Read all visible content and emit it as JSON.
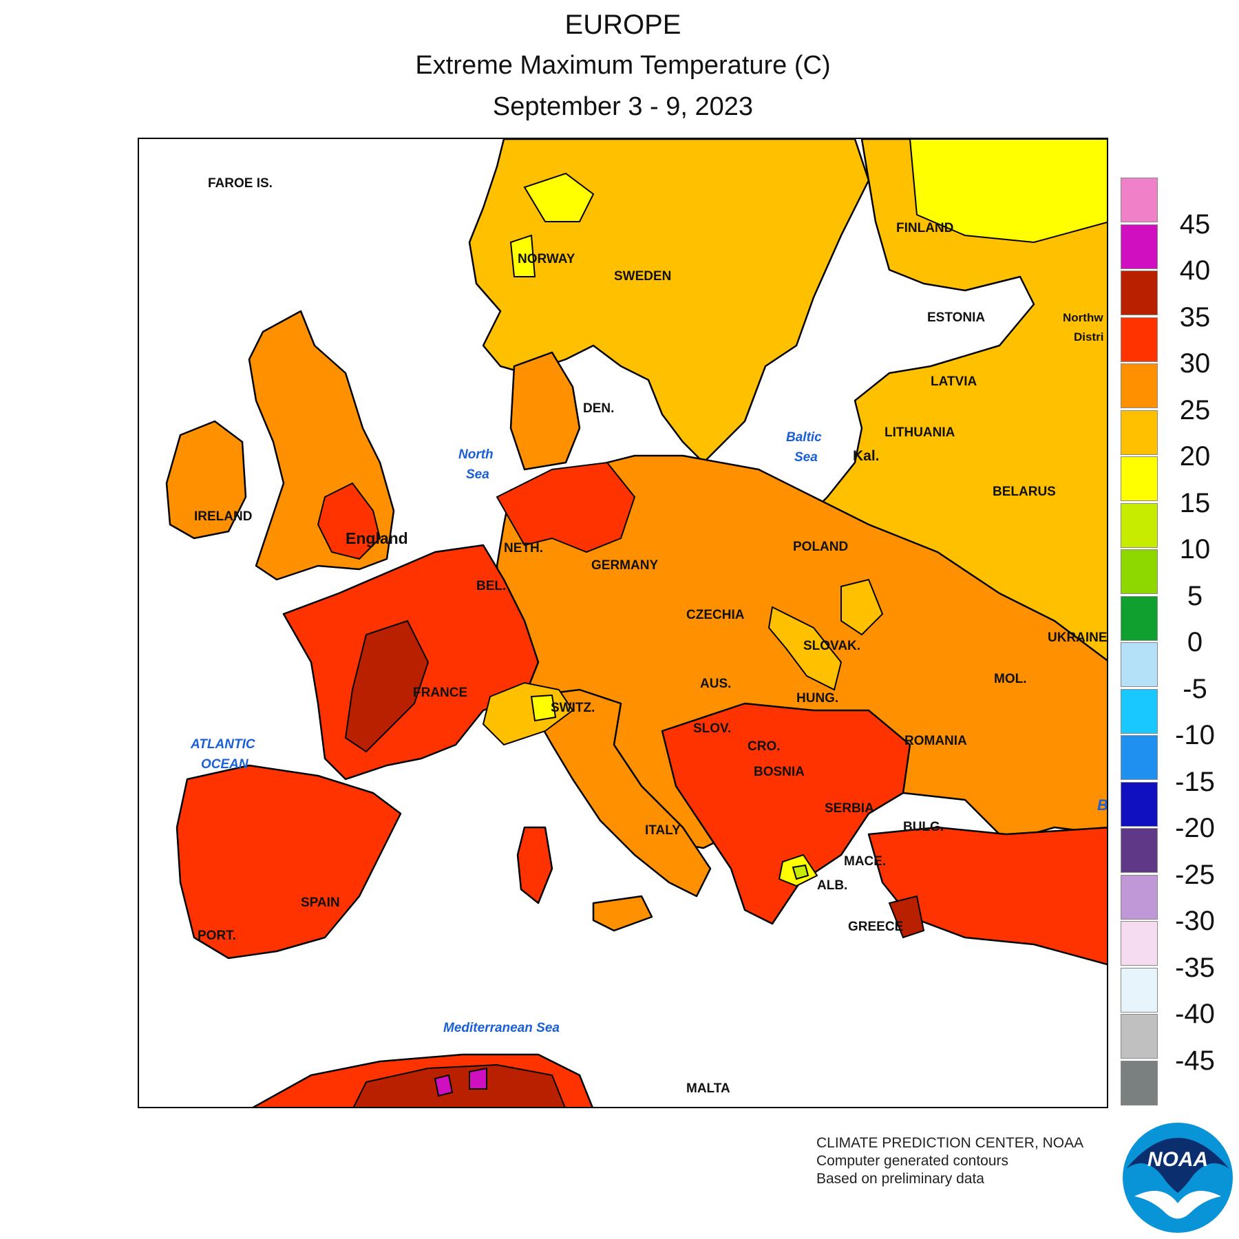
{
  "header": {
    "region": "EUROPE",
    "metric": "Extreme Maximum Temperature (C)",
    "period": "September 3 - 9, 2023"
  },
  "legend": {
    "ticks": [
      "45",
      "40",
      "35",
      "30",
      "25",
      "20",
      "15",
      "10",
      "5",
      "0",
      "-5",
      "-10",
      "-15",
      "-20",
      "-25",
      "-30",
      "-35",
      "-40",
      "-45"
    ],
    "colors": [
      "#f080c8",
      "#d010c0",
      "#b82000",
      "#ff3300",
      "#ff9000",
      "#ffc000",
      "#ffff00",
      "#c8ec00",
      "#8ed800",
      "#10a030",
      "#b4e0f8",
      "#18c8ff",
      "#2090f0",
      "#1010c0",
      "#603888",
      "#c098d8",
      "#f6dcf0",
      "#e8f4fb",
      "#c0c0c0",
      "#7a7f80"
    ]
  },
  "map": {
    "country_labels": [
      "FAROE IS.",
      "NORWAY",
      "SWEDEN",
      "FINLAND",
      "ESTONIA",
      "LATVIA",
      "LITHUANIA",
      "Kal.",
      "BELARUS",
      "DEN.",
      "IRELAND",
      "England",
      "NETH.",
      "BEL.",
      "GERMANY",
      "POLAND",
      "CZECHIA",
      "SLOVAK.",
      "UKRAINE",
      "MOL.",
      "FRANCE",
      "SWITZ.",
      "AUS.",
      "HUNG.",
      "ROMANIA",
      "SLOV.",
      "CRO.",
      "BOSNIA",
      "SERBIA",
      "BULG.",
      "ITALY",
      "MACE.",
      "ALB.",
      "GREECE",
      "SPAIN",
      "PORT.",
      "MALTA",
      "Northw",
      "Distri",
      "B"
    ],
    "sea_labels": [
      "North",
      "Sea",
      "Baltic",
      "Sea",
      "ATLANTIC",
      "OCEAN",
      "Mediterranean Sea"
    ]
  },
  "credits": {
    "line1": "CLIMATE PREDICTION CENTER, NOAA",
    "line2": "Computer generated contours",
    "line3": "Based on preliminary data"
  },
  "logo": {
    "text": "NOAA",
    "icon": "noaa-logo"
  }
}
